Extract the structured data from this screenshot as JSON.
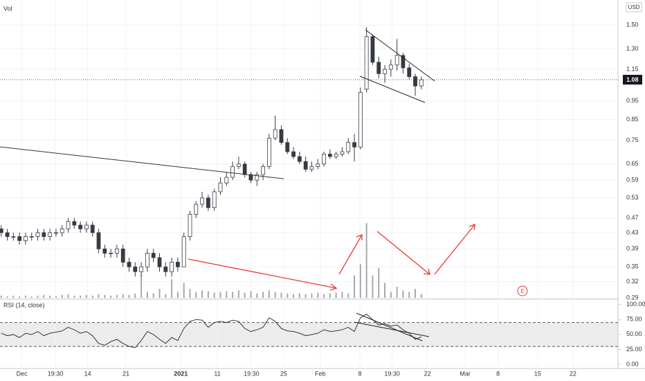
{
  "chart_data": {
    "type": "candlestick",
    "volume_label": "Vol",
    "currency": "USD",
    "event_marker": "E",
    "open": [
      0.44,
      0.43,
      0.42,
      0.42,
      0.41,
      0.42,
      0.42,
      0.43,
      0.42,
      0.43,
      0.43,
      0.44,
      0.46,
      0.45,
      0.44,
      0.45,
      0.43,
      0.39,
      0.38,
      0.38,
      0.39,
      0.36,
      0.35,
      0.34,
      0.35,
      0.38,
      0.37,
      0.35,
      0.34,
      0.36,
      0.35,
      0.42,
      0.48,
      0.51,
      0.53,
      0.5,
      0.55,
      0.58,
      0.6,
      0.64,
      0.65,
      0.61,
      0.59,
      0.61,
      0.64,
      0.76,
      0.8,
      0.74,
      0.7,
      0.68,
      0.66,
      0.63,
      0.64,
      0.65,
      0.69,
      0.68,
      0.69,
      0.7,
      0.74,
      0.72,
      1.02,
      1.4,
      1.2,
      1.12,
      1.15,
      1.18,
      1.25,
      1.16,
      1.1,
      1.04
    ],
    "high": [
      0.45,
      0.44,
      0.43,
      0.43,
      0.43,
      0.43,
      0.44,
      0.44,
      0.44,
      0.44,
      0.45,
      0.47,
      0.47,
      0.46,
      0.46,
      0.46,
      0.44,
      0.4,
      0.39,
      0.4,
      0.4,
      0.37,
      0.36,
      0.36,
      0.39,
      0.39,
      0.38,
      0.36,
      0.37,
      0.37,
      0.43,
      0.49,
      0.52,
      0.55,
      0.54,
      0.56,
      0.6,
      0.62,
      0.66,
      0.68,
      0.66,
      0.62,
      0.62,
      0.65,
      0.78,
      0.87,
      0.82,
      0.76,
      0.72,
      0.7,
      0.68,
      0.66,
      0.67,
      0.7,
      0.71,
      0.7,
      0.72,
      0.76,
      0.78,
      1.03,
      1.48,
      1.42,
      1.24,
      1.18,
      1.22,
      1.38,
      1.27,
      1.19,
      1.12,
      1.1
    ],
    "low": [
      0.42,
      0.41,
      0.41,
      0.4,
      0.4,
      0.41,
      0.41,
      0.41,
      0.41,
      0.42,
      0.42,
      0.43,
      0.44,
      0.43,
      0.43,
      0.42,
      0.38,
      0.37,
      0.37,
      0.37,
      0.35,
      0.34,
      0.33,
      0.33,
      0.34,
      0.36,
      0.34,
      0.33,
      0.33,
      0.34,
      0.35,
      0.41,
      0.47,
      0.5,
      0.49,
      0.49,
      0.54,
      0.57,
      0.59,
      0.63,
      0.6,
      0.58,
      0.57,
      0.59,
      0.63,
      0.75,
      0.73,
      0.69,
      0.67,
      0.65,
      0.62,
      0.62,
      0.63,
      0.64,
      0.67,
      0.67,
      0.68,
      0.69,
      0.66,
      0.71,
      1.0,
      1.18,
      1.09,
      1.06,
      1.1,
      1.14,
      1.12,
      1.08,
      0.98,
      1.02
    ],
    "close": [
      0.43,
      0.42,
      0.42,
      0.41,
      0.42,
      0.42,
      0.43,
      0.42,
      0.43,
      0.43,
      0.44,
      0.46,
      0.45,
      0.44,
      0.45,
      0.43,
      0.39,
      0.38,
      0.38,
      0.39,
      0.36,
      0.35,
      0.34,
      0.35,
      0.38,
      0.37,
      0.35,
      0.34,
      0.36,
      0.35,
      0.42,
      0.48,
      0.51,
      0.53,
      0.5,
      0.55,
      0.58,
      0.6,
      0.64,
      0.65,
      0.61,
      0.59,
      0.61,
      0.64,
      0.76,
      0.8,
      0.74,
      0.7,
      0.68,
      0.66,
      0.63,
      0.64,
      0.65,
      0.69,
      0.68,
      0.69,
      0.7,
      0.74,
      0.72,
      1.0,
      1.4,
      1.2,
      1.12,
      1.15,
      1.18,
      1.25,
      1.16,
      1.1,
      1.04,
      1.08
    ],
    "volume": [
      3,
      2,
      3,
      2,
      3,
      2,
      3,
      4,
      3,
      2,
      4,
      5,
      3,
      3,
      4,
      3,
      5,
      4,
      3,
      4,
      5,
      4,
      6,
      30,
      8,
      6,
      12,
      5,
      25,
      8,
      20,
      12,
      8,
      10,
      9,
      7,
      8,
      9,
      8,
      10,
      7,
      9,
      6,
      8,
      10,
      8,
      7,
      6,
      5,
      6,
      5,
      6,
      7,
      5,
      6,
      7,
      8,
      6,
      30,
      45,
      100,
      30,
      40,
      20,
      8,
      15,
      10,
      8,
      12,
      5
    ],
    "volume_lim": [
      0,
      100
    ],
    "up_color": "#ffffff",
    "down_color": "#363a45",
    "volume_color": "#a5a8b0",
    "last_price": 1.08,
    "xlim": [
      -0.2,
      101.3
    ],
    "xticks": [
      {
        "value": 3.4,
        "label": "Dec"
      },
      {
        "value": 8.9,
        "label": "19:30"
      },
      {
        "value": 14.2,
        "label": "14"
      },
      {
        "value": 20.5,
        "label": "21"
      },
      {
        "value": 29.5,
        "label": "2021"
      },
      {
        "value": 35.5,
        "label": "11"
      },
      {
        "value": 41.1,
        "label": "19:30"
      },
      {
        "value": 46.4,
        "label": "25"
      },
      {
        "value": 52.4,
        "label": "Feb"
      },
      {
        "value": 58.9,
        "label": "8"
      },
      {
        "value": 64.2,
        "label": "19:30"
      },
      {
        "value": 70,
        "label": "22"
      },
      {
        "value": 76.2,
        "label": "Mar"
      },
      {
        "value": 81.6,
        "label": "8"
      },
      {
        "value": 88.1,
        "label": "15"
      },
      {
        "value": 93.9,
        "label": "22"
      }
    ],
    "ylim": [
      0.288,
      1.745
    ],
    "log_scale": true,
    "yticks": [
      {
        "value": 1.5,
        "label": "1.50"
      },
      {
        "value": 1.3,
        "label": "1.30"
      },
      1.15,
      0.95,
      0.85,
      0.75,
      0.65,
      0.59,
      0.53,
      0.47,
      0.43,
      0.39,
      0.35,
      0.32,
      0.29
    ],
    "rsi": {
      "label": "RSI (14, close)",
      "color": "#222222",
      "values": [
        52,
        48,
        50,
        45,
        52,
        50,
        55,
        48,
        52,
        54,
        56,
        62,
        58,
        52,
        55,
        48,
        35,
        32,
        38,
        42,
        35,
        30,
        28,
        40,
        55,
        50,
        42,
        35,
        45,
        40,
        60,
        72,
        75,
        74,
        62,
        70,
        72,
        70,
        74,
        72,
        60,
        55,
        58,
        62,
        78,
        72,
        60,
        56,
        55,
        52,
        48,
        50,
        52,
        58,
        55,
        56,
        58,
        62,
        55,
        78,
        84,
        75,
        66,
        68,
        64,
        66,
        58,
        52,
        42,
        46
      ],
      "band": [
        30,
        70
      ],
      "ylim": [
        -7,
        109
      ],
      "yticks": [
        {
          "value": 100,
          "label": "100.00"
        },
        {
          "value": 75,
          "label": "75.00"
        },
        {
          "value": 50,
          "label": "50.00"
        },
        {
          "value": 25,
          "label": "25.00"
        },
        {
          "value": 0,
          "label": "0.00"
        }
      ]
    }
  }
}
